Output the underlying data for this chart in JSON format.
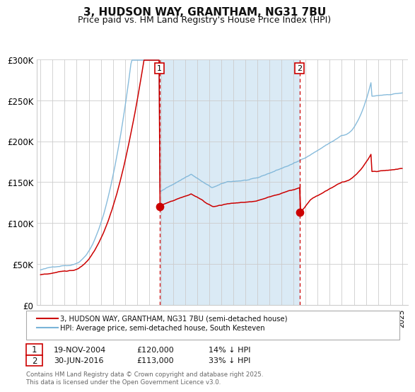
{
  "title": "3, HUDSON WAY, GRANTHAM, NG31 7BU",
  "subtitle": "Price paid vs. HM Land Registry's House Price Index (HPI)",
  "legend_red": "3, HUDSON WAY, GRANTHAM, NG31 7BU (semi-detached house)",
  "legend_blue": "HPI: Average price, semi-detached house, South Kesteven",
  "footnote": "Contains HM Land Registry data © Crown copyright and database right 2025.\nThis data is licensed under the Open Government Licence v3.0.",
  "marker1_date": "19-NOV-2004",
  "marker1_price": 120000,
  "marker1_label": "14% ↓ HPI",
  "marker2_date": "30-JUN-2016",
  "marker2_price": 113000,
  "marker2_label": "33% ↓ HPI",
  "marker1_x": 2004.88,
  "marker2_x": 2016.5,
  "hpi_color": "#7ab4d8",
  "price_color": "#cc0000",
  "shade_color": "#daeaf5",
  "vline1_color": "#cc0000",
  "vline2_color": "#cc0000",
  "ylim": [
    0,
    300000
  ],
  "xlim": [
    1994.7,
    2025.5
  ],
  "yticks": [
    0,
    50000,
    100000,
    150000,
    200000,
    250000,
    300000
  ],
  "ytick_labels": [
    "£0",
    "£50K",
    "£100K",
    "£150K",
    "£200K",
    "£250K",
    "£300K"
  ],
  "xticks": [
    1995,
    1996,
    1997,
    1998,
    1999,
    2000,
    2001,
    2002,
    2003,
    2004,
    2005,
    2006,
    2007,
    2008,
    2009,
    2010,
    2011,
    2012,
    2013,
    2014,
    2015,
    2016,
    2017,
    2018,
    2019,
    2020,
    2021,
    2022,
    2023,
    2024,
    2025
  ],
  "background": "#ffffff",
  "grid_color": "#cccccc"
}
